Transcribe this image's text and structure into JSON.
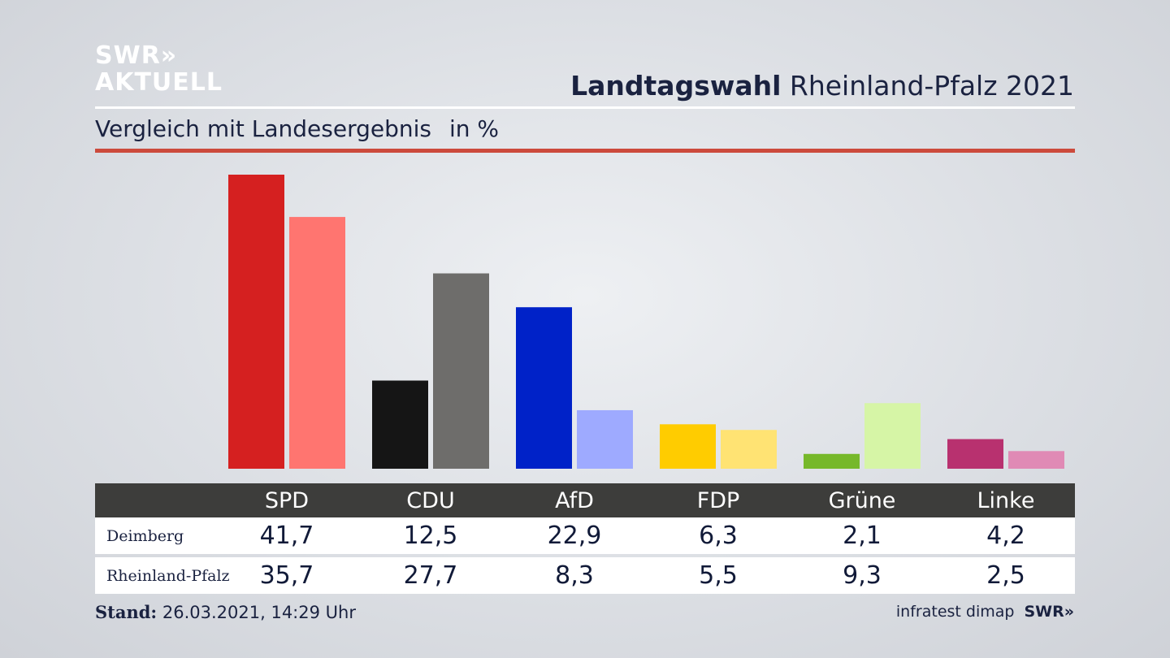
{
  "brand": {
    "line1": "SWR»",
    "line2": "AKTUELL"
  },
  "header": {
    "title_bold": "Landtagswahl",
    "title_rest": "Rheinland-Pfalz 2021",
    "subtitle": "Vergleich mit Landesergebnis",
    "unit": "in %"
  },
  "colors": {
    "accent_red_rule": "#cc4a3c",
    "table_header_bg": "#3d3d3b"
  },
  "chart_data": {
    "type": "bar",
    "title": "Landtagswahl Rheinland-Pfalz 2021",
    "subtitle": "Vergleich mit Landesergebnis in %",
    "categories": [
      "SPD",
      "CDU",
      "AfD",
      "FDP",
      "Grüne",
      "Linke"
    ],
    "series": [
      {
        "name": "Deimberg",
        "values": [
          41.7,
          12.5,
          22.9,
          6.3,
          2.1,
          4.2
        ],
        "colors": [
          "#d52020",
          "#151515",
          "#0022c8",
          "#ffcc00",
          "#76b82a",
          "#b8316f"
        ]
      },
      {
        "name": "Rheinland-Pfalz",
        "values": [
          35.7,
          27.7,
          8.3,
          5.5,
          9.3,
          2.5
        ],
        "colors": [
          "#ff7570",
          "#6e6d6b",
          "#9eaaff",
          "#ffe373",
          "#d6f5a6",
          "#e08ab5"
        ]
      }
    ],
    "value_labels": [
      [
        "41,7",
        "12,5",
        "22,9",
        "6,3",
        "2,1",
        "4,2"
      ],
      [
        "35,7",
        "27,7",
        "8,3",
        "5,5",
        "9,3",
        "2,5"
      ]
    ],
    "ylim": [
      0,
      41.7
    ],
    "grid": false,
    "legend": "table-below"
  },
  "footer": {
    "stand_label": "Stand:",
    "stand_value": "26.03.2021, 14:29 Uhr",
    "source": "infratest dimap",
    "source_brand": "SWR»"
  }
}
